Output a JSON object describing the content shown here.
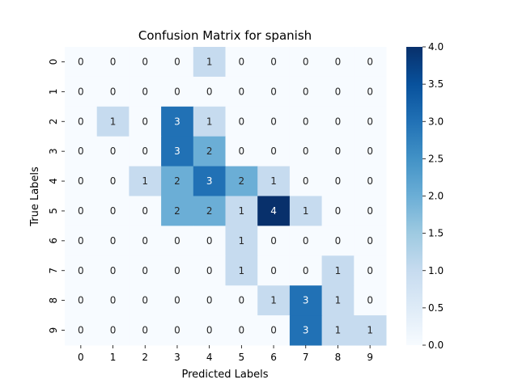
{
  "chart_data": {
    "type": "heatmap",
    "title": "Confusion Matrix for spanish",
    "xlabel": "Predicted Labels",
    "ylabel": "True Labels",
    "x_categories": [
      "0",
      "1",
      "2",
      "3",
      "4",
      "5",
      "6",
      "7",
      "8",
      "9"
    ],
    "y_categories": [
      "0",
      "1",
      "2",
      "3",
      "4",
      "5",
      "6",
      "7",
      "8",
      "9"
    ],
    "values": [
      [
        0,
        0,
        0,
        0,
        1,
        0,
        0,
        0,
        0,
        0
      ],
      [
        0,
        0,
        0,
        0,
        0,
        0,
        0,
        0,
        0,
        0
      ],
      [
        0,
        1,
        0,
        3,
        1,
        0,
        0,
        0,
        0,
        0
      ],
      [
        0,
        0,
        0,
        3,
        2,
        0,
        0,
        0,
        0,
        0
      ],
      [
        0,
        0,
        1,
        2,
        3,
        2,
        1,
        0,
        0,
        0
      ],
      [
        0,
        0,
        0,
        2,
        2,
        1,
        4,
        1,
        0,
        0
      ],
      [
        0,
        0,
        0,
        0,
        0,
        1,
        0,
        0,
        0,
        0
      ],
      [
        0,
        0,
        0,
        0,
        0,
        1,
        0,
        0,
        1,
        0
      ],
      [
        0,
        0,
        0,
        0,
        0,
        0,
        1,
        3,
        1,
        0
      ],
      [
        0,
        0,
        0,
        0,
        0,
        0,
        0,
        3,
        1,
        1
      ]
    ],
    "colorbar": {
      "min": 0.0,
      "max": 4.0,
      "ticks": [
        "0.0",
        "0.5",
        "1.0",
        "1.5",
        "2.0",
        "2.5",
        "3.0",
        "3.5",
        "4.0"
      ],
      "colormap": "Blues"
    },
    "annotations": true,
    "grid": false
  }
}
